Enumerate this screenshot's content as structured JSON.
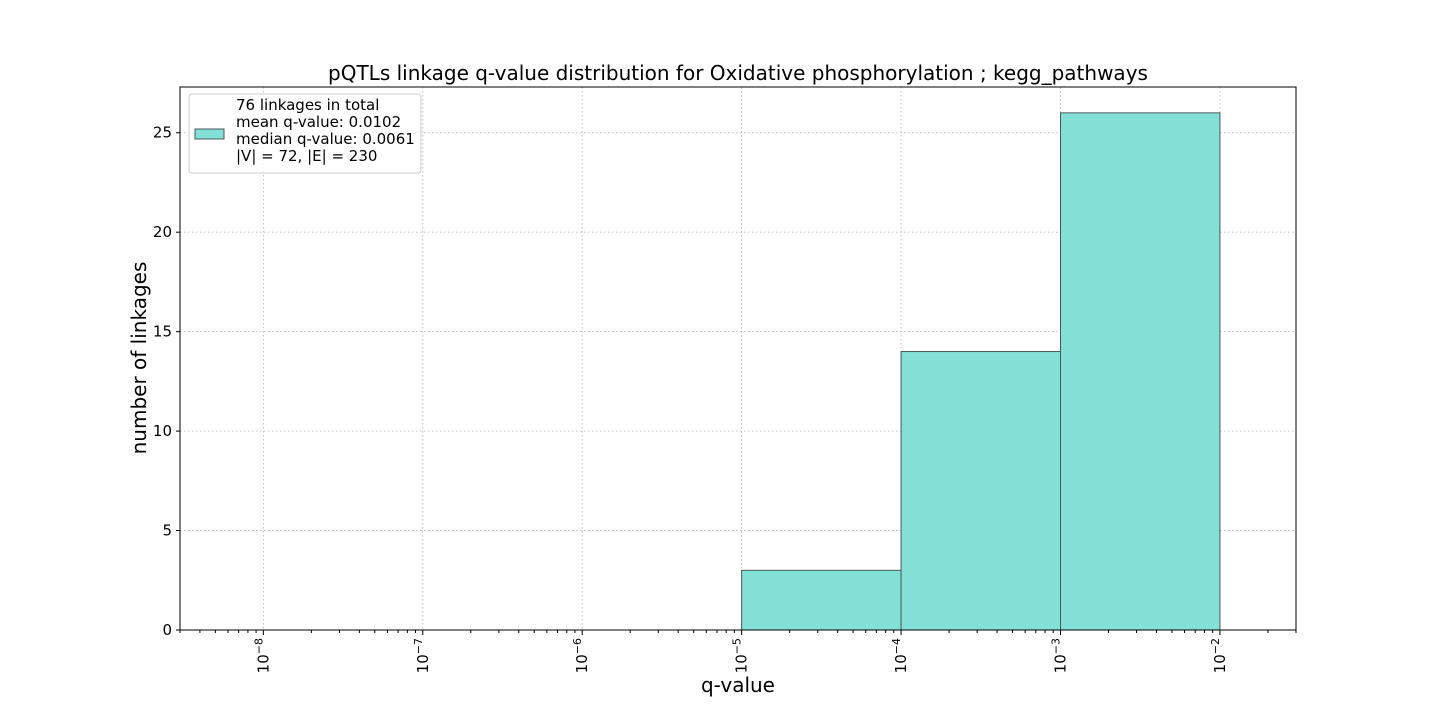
{
  "chart_data": {
    "type": "bar",
    "title": "pQTLs linkage q-value distribution for Oxidative phosphorylation ; kegg_pathways",
    "xlabel": "q-value",
    "ylabel": "number of linkages",
    "x_scale": "log",
    "xlim": [
      3e-09,
      0.03
    ],
    "ylim": [
      0,
      27.3
    ],
    "grid": true,
    "bar_color": "#82e0d6",
    "bar_edge_color": "#4a5a58",
    "x_ticks": [
      {
        "value": 1e-08,
        "base": "10",
        "exp": "−8"
      },
      {
        "value": 1e-07,
        "base": "10",
        "exp": "−7"
      },
      {
        "value": 1e-06,
        "base": "10",
        "exp": "−6"
      },
      {
        "value": 1e-05,
        "base": "10",
        "exp": "−5"
      },
      {
        "value": 0.0001,
        "base": "10",
        "exp": "−4"
      },
      {
        "value": 0.001,
        "base": "10",
        "exp": "−3"
      },
      {
        "value": 0.01,
        "base": "10",
        "exp": "−2"
      }
    ],
    "y_ticks": [
      {
        "value": 0,
        "label": "0"
      },
      {
        "value": 5,
        "label": "5"
      },
      {
        "value": 10,
        "label": "10"
      },
      {
        "value": 15,
        "label": "15"
      },
      {
        "value": 20,
        "label": "20"
      },
      {
        "value": 25,
        "label": "25"
      }
    ],
    "bins": [
      {
        "x0": 1e-08,
        "x1": 1e-07,
        "count": 0
      },
      {
        "x0": 1e-07,
        "x1": 1e-06,
        "count": 0
      },
      {
        "x0": 1e-06,
        "x1": 1e-05,
        "count": 0
      },
      {
        "x0": 1e-05,
        "x1": 0.0001,
        "count": 3
      },
      {
        "x0": 0.0001,
        "x1": 0.001,
        "count": 14
      },
      {
        "x0": 0.001,
        "x1": 0.01,
        "count": 26
      }
    ],
    "legend": {
      "placement": "top-left",
      "lines": [
        "76 linkages in total",
        "mean q-value: 0.0102",
        "median q-value: 0.0061",
        "|V| = 72, |E| = 230"
      ]
    }
  }
}
